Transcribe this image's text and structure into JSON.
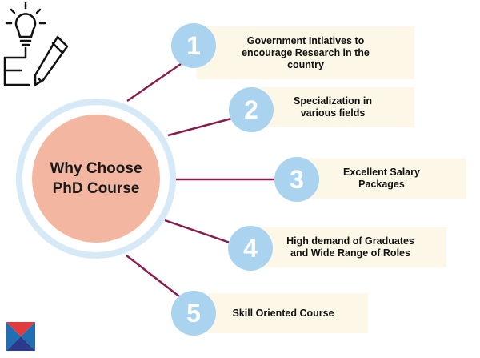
{
  "center": {
    "title_line1": "Why Choose",
    "title_line2": "PhD Course"
  },
  "items": [
    {
      "number": "1",
      "line1": "Government Intiatives to",
      "line2": "encourage Research in the",
      "line3": "country"
    },
    {
      "number": "2",
      "line1": "Specialization in",
      "line2": "various fields"
    },
    {
      "number": "3",
      "line1": "Excellent Salary",
      "line2": "Packages"
    },
    {
      "number": "4",
      "line1": "High demand of Graduates",
      "line2": "and Wide Range of Roles"
    },
    {
      "number": "5",
      "line1": "Skill Oriented Course"
    }
  ],
  "colors": {
    "connector": "#8a1c4d",
    "number_circle": "#a9d3ef",
    "card_bg": "#fdf7e7",
    "hub_fill": "#f3b6a0",
    "hub_ring": "#d6e9f6"
  },
  "icons": [
    "lightbulb-pencil-icon",
    "logo-icon"
  ]
}
